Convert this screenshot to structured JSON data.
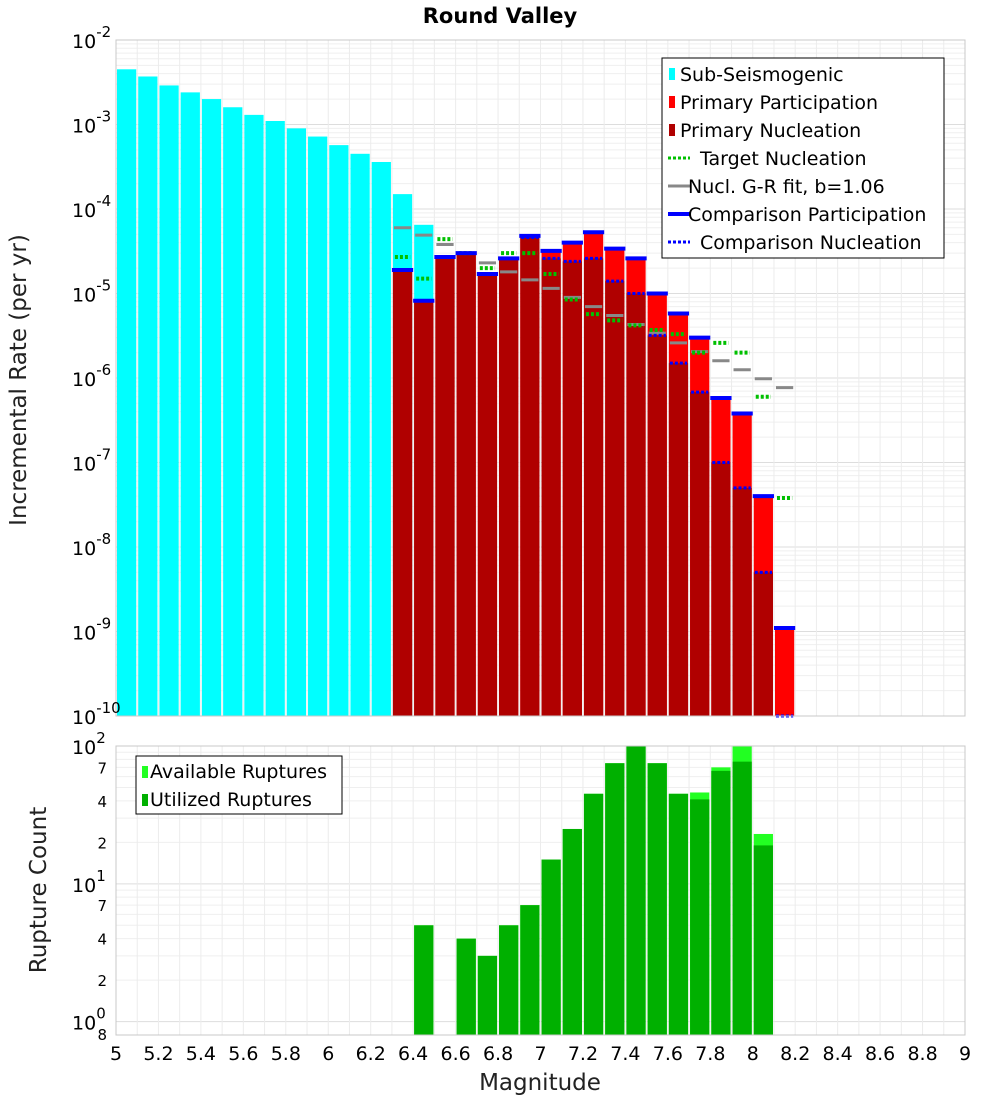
{
  "title": "Round Valley",
  "colors": {
    "sub_seismogenic": "#00ffff",
    "primary_participation": "#ff0000",
    "primary_nucleation": "#b00000",
    "target_nucleation": "#00c000",
    "gr_fit": "#888888",
    "comparison": "#0000ff",
    "available": "#22ff22",
    "utilized": "#00b000",
    "grid": "#e6e6e6"
  },
  "chart_data": [
    {
      "type": "bar",
      "name": "mfd",
      "title": "Round Valley",
      "xlabel": "Magnitude",
      "ylabel": "Incremental Rate (per yr)",
      "xlim": [
        5,
        9
      ],
      "ylim": [
        1e-10,
        0.01
      ],
      "yscale": "log",
      "bin_width": 0.1,
      "y_ticks": [
        {
          "value": 0.01,
          "base": "10",
          "exp": "-2"
        },
        {
          "value": 0.001,
          "base": "10",
          "exp": "-3"
        },
        {
          "value": 0.0001,
          "base": "10",
          "exp": "-4"
        },
        {
          "value": 1e-05,
          "base": "10",
          "exp": "-5"
        },
        {
          "value": 1e-06,
          "base": "10",
          "exp": "-6"
        },
        {
          "value": 1e-07,
          "base": "10",
          "exp": "-7"
        },
        {
          "value": 1e-08,
          "base": "10",
          "exp": "-8"
        },
        {
          "value": 1e-09,
          "base": "10",
          "exp": "-9"
        },
        {
          "value": 1e-10,
          "base": "10",
          "exp": "-10"
        }
      ],
      "legend": [
        {
          "label": "Sub-Seismogenic",
          "style": "sub"
        },
        {
          "label": "Primary Participation",
          "style": "part"
        },
        {
          "label": "Primary Nucleation",
          "style": "nucl"
        },
        {
          "label": "Target Nucleation",
          "style": "target"
        },
        {
          "label": "Nucl. G-R fit, b=1.06",
          "style": "gr"
        },
        {
          "label": "Comparison Participation",
          "style": "cmp_part"
        },
        {
          "label": "Comparison Nucleation",
          "style": "cmp_nucl"
        }
      ],
      "sub_seismogenic": {
        "x": [
          5.05,
          5.15,
          5.25,
          5.35,
          5.45,
          5.55,
          5.65,
          5.75,
          5.85,
          5.95,
          6.05,
          6.15,
          6.25,
          6.35,
          6.45
        ],
        "values": [
          0.0045,
          0.0037,
          0.0029,
          0.0024,
          0.002,
          0.0016,
          0.0013,
          0.0011,
          0.0009,
          0.00072,
          0.00057,
          0.00045,
          0.00036,
          0.00015,
          6.5e-05
        ]
      },
      "primary_participation": {
        "x": [
          6.35,
          6.45,
          6.55,
          6.65,
          6.75,
          6.85,
          6.95,
          7.05,
          7.15,
          7.25,
          7.35,
          7.45,
          7.55,
          7.65,
          7.75,
          7.85,
          7.95,
          8.05,
          8.15
        ],
        "values": [
          1.9e-05,
          8.2e-06,
          2.7e-05,
          3e-05,
          1.7e-05,
          2.6e-05,
          4.8e-05,
          3.2e-05,
          4e-05,
          5.3e-05,
          3.4e-05,
          2.6e-05,
          1e-05,
          5.8e-06,
          3e-06,
          5.8e-07,
          3.8e-07,
          4e-08,
          1.1e-09
        ]
      },
      "primary_nucleation": {
        "x": [
          6.35,
          6.45,
          6.55,
          6.65,
          6.75,
          6.85,
          6.95,
          7.05,
          7.15,
          7.25,
          7.35,
          7.45,
          7.55,
          7.65,
          7.75,
          7.85,
          7.95,
          8.05,
          8.15
        ],
        "values": [
          1.9e-05,
          8.2e-06,
          2.7e-05,
          3e-05,
          1.7e-05,
          2.6e-05,
          4.6e-05,
          2.6e-05,
          2.4e-05,
          2.6e-05,
          1.4e-05,
          1e-05,
          3.2e-06,
          1.5e-06,
          6.8e-07,
          1e-07,
          5e-08,
          5e-09,
          1e-10
        ]
      },
      "target_nucleation": {
        "x": [
          6.35,
          6.45,
          6.55,
          6.65,
          6.75,
          6.85,
          6.95,
          7.05,
          7.15,
          7.25,
          7.35,
          7.45,
          7.55,
          7.65,
          7.75,
          7.85,
          7.95,
          8.05,
          8.15
        ],
        "values": [
          2.7e-05,
          1.5e-05,
          4.4e-05,
          3e-05,
          2e-05,
          3e-05,
          3e-05,
          1.7e-05,
          8.5e-06,
          5.7e-06,
          4.8e-06,
          4.2e-06,
          3.7e-06,
          3.3e-06,
          2e-06,
          2.6e-06,
          2e-06,
          6e-07,
          3.8e-08
        ]
      },
      "gr_fit": {
        "x": [
          6.35,
          6.45,
          6.55,
          6.65,
          6.75,
          6.85,
          6.95,
          7.05,
          7.15,
          7.25,
          7.35,
          7.45,
          7.55,
          7.65,
          7.75,
          7.85,
          7.95,
          8.05,
          8.15
        ],
        "values": [
          6e-05,
          4.9e-05,
          3.8e-05,
          3e-05,
          2.3e-05,
          1.8e-05,
          1.45e-05,
          1.15e-05,
          9e-06,
          7e-06,
          5.5e-06,
          4.3e-06,
          3.4e-06,
          2.6e-06,
          2.05e-06,
          1.6e-06,
          1.25e-06,
          9.8e-07,
          7.7e-07
        ]
      },
      "comparison_participation": {
        "x": [
          6.35,
          6.45,
          6.55,
          6.65,
          6.75,
          6.85,
          6.95,
          7.05,
          7.15,
          7.25,
          7.35,
          7.45,
          7.55,
          7.65,
          7.75,
          7.85,
          7.95,
          8.05,
          8.15
        ],
        "values": [
          1.9e-05,
          8.2e-06,
          2.7e-05,
          3e-05,
          1.7e-05,
          2.6e-05,
          4.8e-05,
          3.2e-05,
          4e-05,
          5.3e-05,
          3.4e-05,
          2.6e-05,
          1e-05,
          5.8e-06,
          3e-06,
          5.8e-07,
          3.8e-07,
          4e-08,
          1.1e-09
        ]
      },
      "comparison_nucleation": {
        "x": [
          6.35,
          6.45,
          6.55,
          6.65,
          6.75,
          6.85,
          6.95,
          7.05,
          7.15,
          7.25,
          7.35,
          7.45,
          7.55,
          7.65,
          7.75,
          7.85,
          7.95,
          8.05,
          8.15
        ],
        "values": [
          1.9e-05,
          8.2e-06,
          2.7e-05,
          3e-05,
          1.7e-05,
          2.6e-05,
          4.6e-05,
          2.6e-05,
          2.4e-05,
          2.6e-05,
          1.4e-05,
          1e-05,
          3.2e-06,
          1.5e-06,
          6.8e-07,
          1e-07,
          5e-08,
          5e-09,
          1e-10
        ]
      }
    },
    {
      "type": "bar",
      "name": "rupture_count",
      "xlabel": "Magnitude",
      "ylabel": "Rupture Count",
      "xlim": [
        5,
        9
      ],
      "ylim": [
        0.8,
        100
      ],
      "yscale": "log",
      "bin_width": 0.1,
      "x_ticks": [
        "5",
        "5.2",
        "5.4",
        "5.6",
        "5.8",
        "6",
        "6.2",
        "6.4",
        "6.6",
        "6.8",
        "7",
        "7.2",
        "7.4",
        "7.6",
        "7.8",
        "8",
        "8.2",
        "8.4",
        "8.6",
        "8.8",
        "9"
      ],
      "y_major_ticks": [
        {
          "value": 100,
          "base": "10",
          "exp": "2"
        },
        {
          "value": 10,
          "base": "10",
          "exp": "1"
        },
        {
          "value": 1,
          "base": "10",
          "exp": "0"
        }
      ],
      "y_minor_ticks": [
        {
          "value": 70,
          "label": "7"
        },
        {
          "value": 40,
          "label": "4"
        },
        {
          "value": 20,
          "label": "2"
        },
        {
          "value": 7,
          "label": "7"
        },
        {
          "value": 4,
          "label": "4"
        },
        {
          "value": 2,
          "label": "2"
        },
        {
          "value": 0.8,
          "label": "8"
        }
      ],
      "legend": [
        {
          "label": "Available Ruptures",
          "style": "available"
        },
        {
          "label": "Utilized Ruptures",
          "style": "utilized"
        }
      ],
      "available": {
        "x": [
          6.45,
          6.65,
          6.75,
          6.85,
          6.95,
          7.05,
          7.15,
          7.25,
          7.35,
          7.45,
          7.55,
          7.65,
          7.75,
          7.85,
          7.95,
          8.05
        ],
        "values": [
          5,
          4,
          3,
          5,
          7,
          15,
          25,
          45,
          75,
          100,
          75,
          45,
          46,
          70,
          100,
          23
        ]
      },
      "utilized": {
        "x": [
          6.45,
          6.65,
          6.75,
          6.85,
          6.95,
          7.05,
          7.15,
          7.25,
          7.35,
          7.45,
          7.55,
          7.65,
          7.75,
          7.85,
          7.95,
          8.05
        ],
        "values": [
          5,
          4,
          3,
          5,
          7,
          15,
          25,
          45,
          75,
          100,
          75,
          45,
          41,
          66,
          77,
          19
        ]
      }
    }
  ]
}
